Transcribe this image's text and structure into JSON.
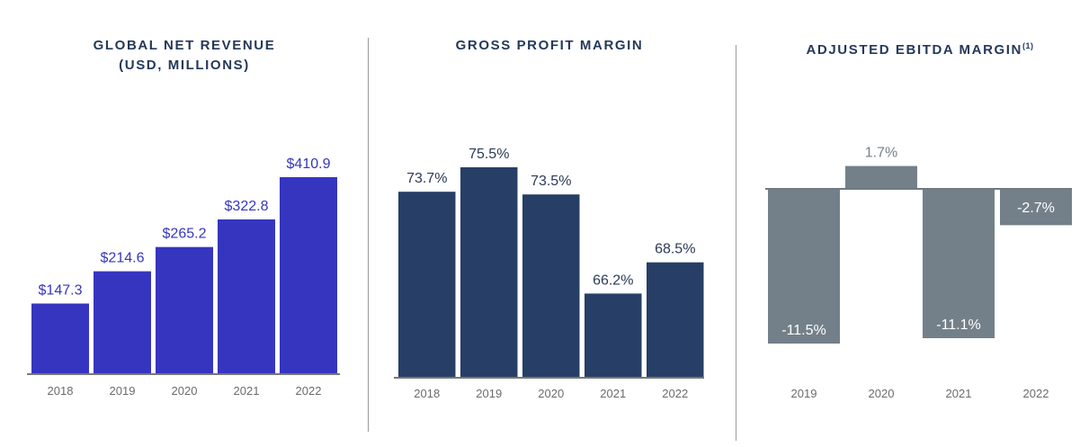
{
  "colors": {
    "revenue": "#3535c0",
    "gross": "#273f66",
    "ebitda": "#748089",
    "title": "#24395a",
    "tick": "#6b6b6b"
  },
  "chart_data": [
    {
      "type": "bar",
      "title": "GLOBAL NET REVENUE",
      "subtitle": "(USD, MILLIONS)",
      "categories": [
        "2018",
        "2019",
        "2020",
        "2021",
        "2022"
      ],
      "values": [
        147.3,
        214.6,
        265.2,
        322.8,
        410.9
      ],
      "data_labels": [
        "$147.3",
        "$214.6",
        "$265.2",
        "$322.8",
        "$410.9"
      ],
      "ylim": [
        0,
        410.9
      ],
      "grid": false
    },
    {
      "type": "bar",
      "title": "GROSS PROFIT MARGIN",
      "categories": [
        "2018",
        "2019",
        "2020",
        "2021",
        "2022"
      ],
      "values": [
        73.7,
        75.5,
        73.5,
        66.2,
        68.5
      ],
      "data_labels": [
        "73.7%",
        "75.5%",
        "73.5%",
        "66.2%",
        "68.5%"
      ],
      "ylim": [
        60,
        75.5
      ],
      "grid": false
    },
    {
      "type": "bar",
      "title": "ADJUSTED EBITDA MARGIN",
      "title_footnote": "(1)",
      "categories": [
        "2019",
        "2020",
        "2021",
        "2022"
      ],
      "values": [
        -11.5,
        1.7,
        -11.1,
        -2.7
      ],
      "data_labels": [
        "-11.5%",
        "1.7%",
        "-11.1%",
        "-2.7%"
      ],
      "ylim": [
        -11.5,
        1.7
      ],
      "grid": false
    }
  ]
}
